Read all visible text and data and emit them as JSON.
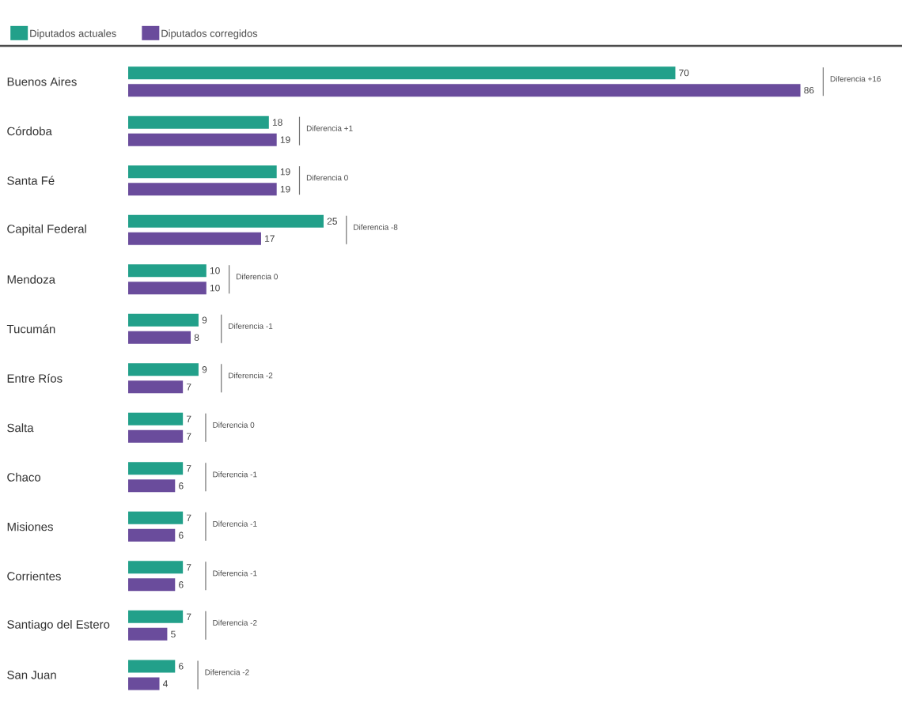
{
  "chart_data": {
    "type": "bar",
    "orientation": "horizontal",
    "categories": [
      "Buenos Aires",
      "Córdoba",
      "Santa Fé",
      "Capital Federal",
      "Mendoza",
      "Tucumán",
      "Entre Ríos",
      "Salta",
      "Chaco",
      "Misiones",
      "Corrientes",
      "Santiago del Estero",
      "San Juan"
    ],
    "series": [
      {
        "name": "Diputados actuales",
        "color": "#22a08a",
        "values": [
          70,
          18,
          19,
          25,
          10,
          9,
          9,
          7,
          7,
          7,
          7,
          7,
          6
        ]
      },
      {
        "name": "Diputados corregidos",
        "color": "#6a4c9c",
        "values": [
          86,
          19,
          19,
          17,
          10,
          8,
          7,
          7,
          6,
          6,
          6,
          5,
          4
        ]
      }
    ],
    "xlim": [
      0,
      99
    ],
    "tick_labels": "y",
    "data_labels": true,
    "legend": "top left",
    "grid": false,
    "annotations": [
      "Diferencia +16",
      "Diferencia +1",
      "Diferencia 0",
      "Diferencia -8",
      "Diferencia 0",
      "Diferencia -1",
      "Diferencia -2",
      "Diferencia 0",
      "Diferencia -1",
      "Diferencia -1",
      "Diferencia -1",
      "Diferencia -2",
      "Diferencia -2"
    ]
  }
}
